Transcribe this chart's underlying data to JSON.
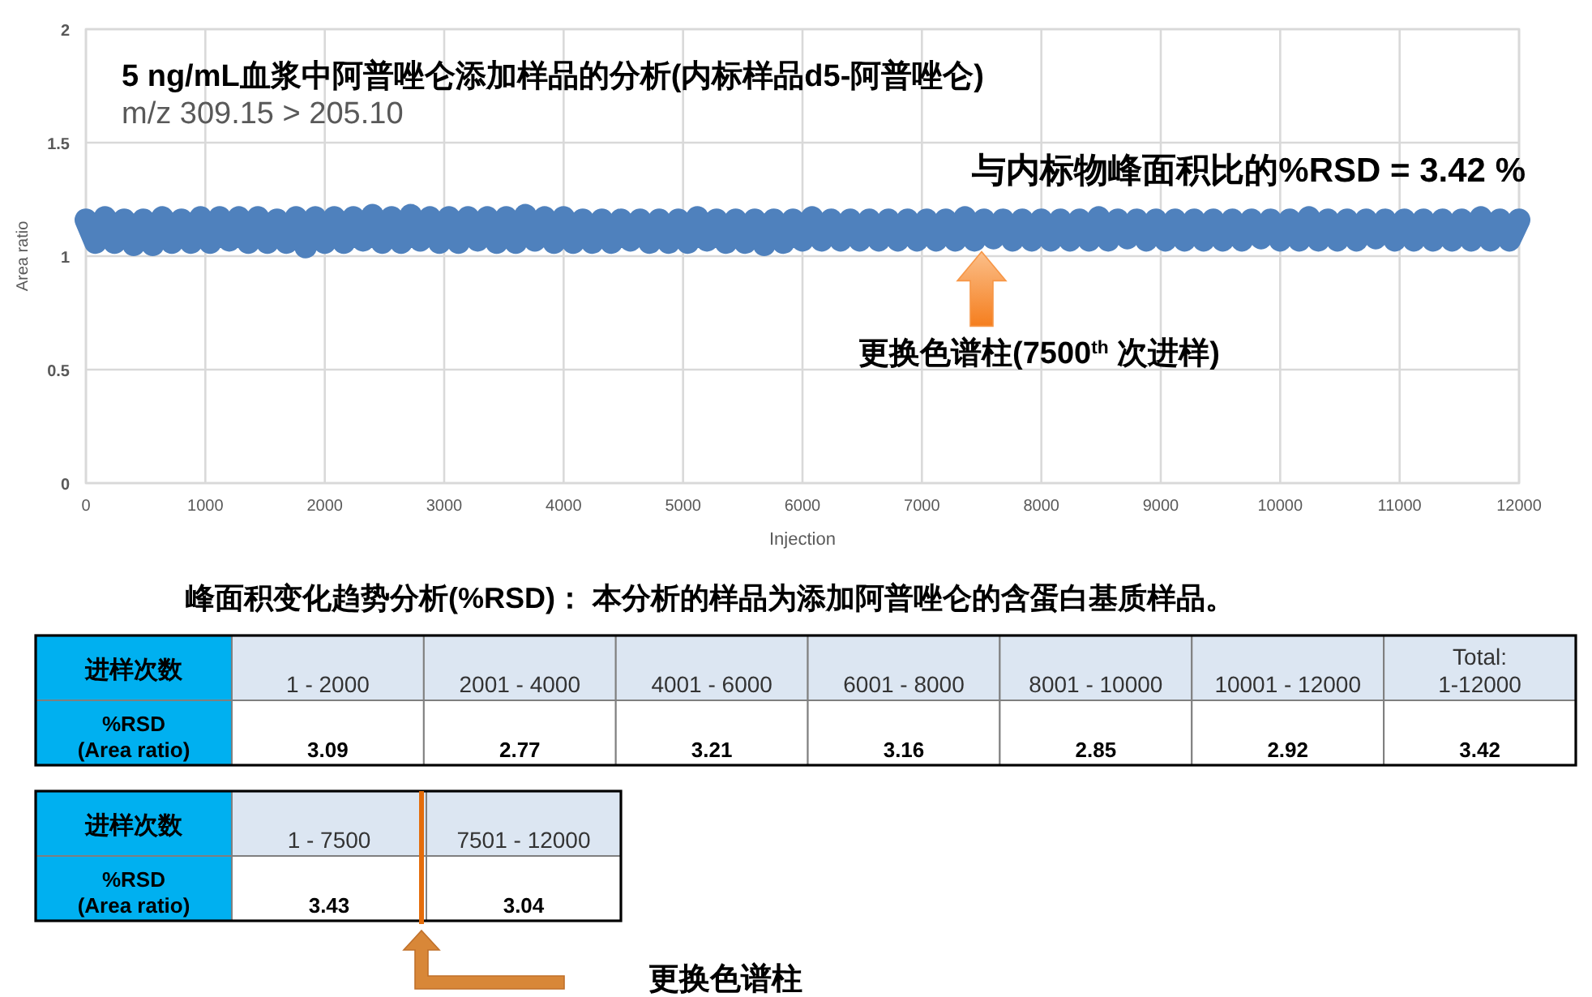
{
  "chart_data": [
    {
      "type": "line",
      "title": "5 ng/mL血浆中阿普唑仑添加样品的分析(内标样品d5-阿普唑仑)",
      "subtitle": "m/z 309.15 > 205.10",
      "xlabel": "Injection",
      "ylabel": "Area ratio",
      "annotations": [
        "与内标物峰面积比的%RSD = 3.42 %",
        {
          "text": "更换色谱柱(7500$^{th}$ 次进样)",
          "x": 7500,
          "y": 1.02
        }
      ],
      "x": [
        0,
        80,
        160,
        240,
        320,
        400,
        480,
        560,
        640,
        720,
        800,
        880,
        960,
        1040,
        1120,
        1200,
        1280,
        1360,
        1440,
        1520,
        1600,
        1680,
        1760,
        1840,
        1920,
        2000,
        2080,
        2160,
        2240,
        2320,
        2400,
        2480,
        2560,
        2640,
        2720,
        2800,
        2880,
        2960,
        3040,
        3120,
        3200,
        3280,
        3360,
        3440,
        3520,
        3600,
        3680,
        3760,
        3840,
        3920,
        4000,
        4080,
        4160,
        4240,
        4320,
        4400,
        4480,
        4560,
        4640,
        4720,
        4800,
        4880,
        4960,
        5040,
        5120,
        5200,
        5280,
        5360,
        5440,
        5520,
        5600,
        5680,
        5760,
        5840,
        5920,
        6000,
        6080,
        6160,
        6240,
        6320,
        6400,
        6480,
        6560,
        6640,
        6720,
        6800,
        6880,
        6960,
        7040,
        7120,
        7200,
        7280,
        7360,
        7440,
        7520,
        7600,
        7680,
        7760,
        7840,
        7920,
        8000,
        8080,
        8160,
        8240,
        8320,
        8400,
        8480,
        8560,
        8640,
        8720,
        8800,
        8880,
        8960,
        9040,
        9120,
        9200,
        9280,
        9360,
        9440,
        9520,
        9600,
        9680,
        9760,
        9840,
        9920,
        10000,
        10080,
        10160,
        10240,
        10320,
        10400,
        10480,
        10560,
        10640,
        10720,
        10800,
        10880,
        10960,
        11040,
        11120,
        11200,
        11280,
        11360,
        11440,
        11520,
        11600,
        11680,
        11760,
        11840,
        11920,
        12000
      ],
      "series": [
        {
          "color": "#4f81bd",
          "values": [
            1.16,
            1.06,
            1.17,
            1.06,
            1.16,
            1.05,
            1.16,
            1.05,
            1.17,
            1.06,
            1.16,
            1.06,
            1.17,
            1.06,
            1.17,
            1.07,
            1.17,
            1.06,
            1.17,
            1.06,
            1.16,
            1.06,
            1.17,
            1.04,
            1.17,
            1.06,
            1.17,
            1.06,
            1.17,
            1.07,
            1.18,
            1.06,
            1.17,
            1.06,
            1.18,
            1.07,
            1.17,
            1.06,
            1.17,
            1.06,
            1.17,
            1.07,
            1.17,
            1.06,
            1.17,
            1.06,
            1.18,
            1.07,
            1.17,
            1.06,
            1.17,
            1.06,
            1.16,
            1.06,
            1.16,
            1.06,
            1.16,
            1.07,
            1.16,
            1.06,
            1.16,
            1.06,
            1.16,
            1.06,
            1.17,
            1.07,
            1.16,
            1.06,
            1.16,
            1.06,
            1.16,
            1.05,
            1.16,
            1.06,
            1.16,
            1.07,
            1.17,
            1.07,
            1.16,
            1.07,
            1.16,
            1.07,
            1.16,
            1.07,
            1.16,
            1.07,
            1.16,
            1.07,
            1.16,
            1.07,
            1.16,
            1.07,
            1.17,
            1.07,
            1.16,
            1.08,
            1.16,
            1.07,
            1.16,
            1.07,
            1.16,
            1.07,
            1.16,
            1.07,
            1.16,
            1.07,
            1.17,
            1.07,
            1.16,
            1.08,
            1.16,
            1.07,
            1.16,
            1.07,
            1.16,
            1.07,
            1.16,
            1.07,
            1.16,
            1.07,
            1.16,
            1.07,
            1.16,
            1.08,
            1.16,
            1.07,
            1.16,
            1.07,
            1.17,
            1.07,
            1.16,
            1.07,
            1.16,
            1.07,
            1.16,
            1.08,
            1.16,
            1.07,
            1.16,
            1.07,
            1.16,
            1.07,
            1.16,
            1.07,
            1.16,
            1.07,
            1.17,
            1.07,
            1.16,
            1.07,
            1.16
          ]
        }
      ],
      "xlim": [
        0,
        12000
      ],
      "ylim": [
        0,
        2
      ],
      "xticks": [
        0,
        1000,
        2000,
        3000,
        4000,
        5000,
        6000,
        7000,
        8000,
        9000,
        10000,
        11000,
        12000
      ],
      "yticks": [
        0,
        0.5,
        1,
        1.5,
        2
      ],
      "grid": true
    },
    {
      "type": "other",
      "title": "峰面积变化趋势分析(%RSD)： 本分析的样品为添加阿普唑仑的含蛋白基质样品。",
      "xlabel": "进样次数",
      "ylabel": "%RSD\n(Area ratio)",
      "categories": [
        "1 - 2000",
        "2001 - 4000",
        "4001 - 6000",
        "6001 - 8000",
        "8001 - 10000",
        "10001 - 12000",
        "Total:\n1-12000"
      ],
      "values": [
        3.09,
        2.77,
        3.21,
        3.16,
        2.85,
        2.92,
        3.42
      ],
      "data_labels": true
    },
    {
      "type": "other",
      "xlabel": "进样次数",
      "ylabel": "%RSD\n(Area ratio)",
      "categories": [
        "1 - 7500",
        "7501 - 12000"
      ],
      "values": [
        3.43,
        3.04
      ],
      "data_labels": true,
      "annotations": [
        "更换色谱柱"
      ]
    }
  ]
}
